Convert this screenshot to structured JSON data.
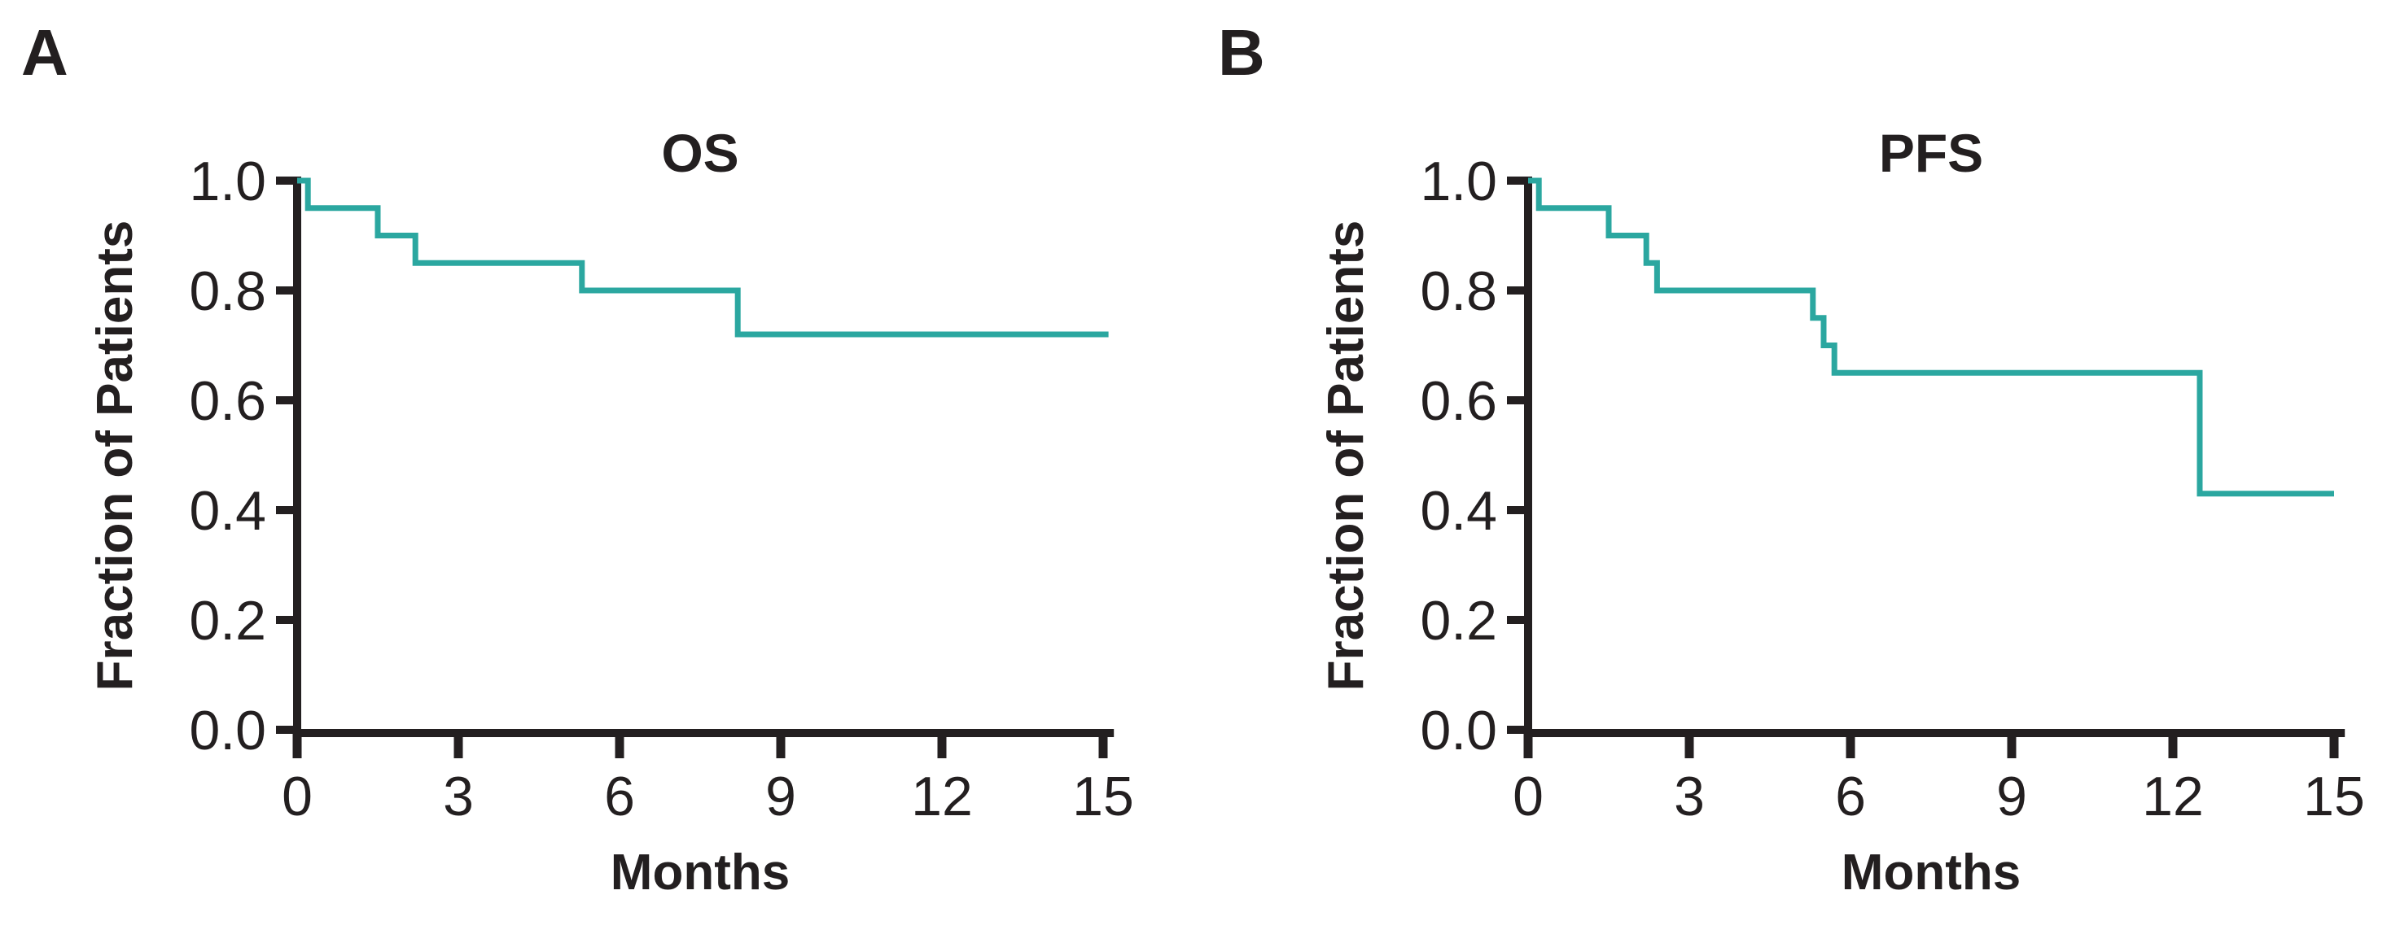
{
  "figure": {
    "background": "#ffffff",
    "axis_color": "#231F20",
    "text_color": "#231F20",
    "line_color": "#2BA7A0"
  },
  "chart_data": [
    {
      "type": "line",
      "subtype": "kaplan-meier-step",
      "panel_label": "A",
      "title": "OS",
      "xlabel": "Months",
      "ylabel": "Fraction of Patients",
      "xlim": [
        0,
        15.3
      ],
      "ylim": [
        0.0,
        1.0
      ],
      "x_ticks": [
        0,
        3,
        6,
        9,
        12,
        15
      ],
      "x_tick_labels": [
        "0",
        "3",
        "6",
        "9",
        "12",
        "15"
      ],
      "y_ticks": [
        1.0,
        0.8,
        0.6,
        0.4,
        0.2,
        0.0
      ],
      "y_tick_labels": [
        "1.0",
        "0.8",
        "0.6",
        "0.4",
        "0.2",
        "0.0"
      ],
      "grid": false,
      "legend": false,
      "line_color": "#2BA7A0",
      "series": [
        {
          "name": "OS",
          "step_points": [
            {
              "t": 0.0,
              "fraction": 1.0
            },
            {
              "t": 0.2,
              "fraction": 0.95
            },
            {
              "t": 1.5,
              "fraction": 0.9
            },
            {
              "t": 2.2,
              "fraction": 0.85
            },
            {
              "t": 5.3,
              "fraction": 0.8
            },
            {
              "t": 8.2,
              "fraction": 0.72
            }
          ],
          "t_end": 15.1
        }
      ]
    },
    {
      "type": "line",
      "subtype": "kaplan-meier-step",
      "panel_label": "B",
      "title": "PFS",
      "xlabel": "Months",
      "ylabel": "Fraction of Patients",
      "xlim": [
        0,
        15.3
      ],
      "ylim": [
        0.0,
        1.0
      ],
      "x_ticks": [
        0,
        3,
        6,
        9,
        12,
        15
      ],
      "x_tick_labels": [
        "0",
        "3",
        "6",
        "9",
        "12",
        "15"
      ],
      "y_ticks": [
        1.0,
        0.8,
        0.6,
        0.4,
        0.2,
        0.0
      ],
      "y_tick_labels": [
        "1.0",
        "0.8",
        "0.6",
        "0.4",
        "0.2",
        "0.0"
      ],
      "grid": false,
      "legend": false,
      "line_color": "#2BA7A0",
      "series": [
        {
          "name": "PFS",
          "step_points": [
            {
              "t": 0.0,
              "fraction": 1.0
            },
            {
              "t": 0.2,
              "fraction": 0.95
            },
            {
              "t": 1.5,
              "fraction": 0.9
            },
            {
              "t": 2.2,
              "fraction": 0.85
            },
            {
              "t": 2.4,
              "fraction": 0.8
            },
            {
              "t": 5.3,
              "fraction": 0.75
            },
            {
              "t": 5.5,
              "fraction": 0.7
            },
            {
              "t": 5.7,
              "fraction": 0.65
            },
            {
              "t": 12.5,
              "fraction": 0.43
            }
          ],
          "t_end": 15.0
        }
      ]
    }
  ]
}
